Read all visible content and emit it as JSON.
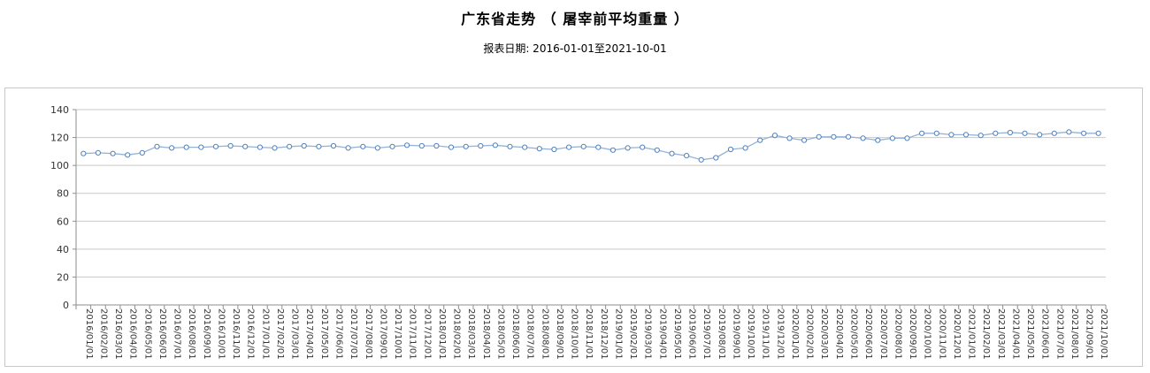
{
  "header": {
    "title": "广东省走势 （ 屠宰前平均重量 ）",
    "report_date": "报表日期: 2016-01-01至2021-10-01"
  },
  "chart_data": {
    "type": "line",
    "title": "广东省走势 （ 屠宰前平均重量 ）",
    "subtitle": "报表日期: 2016-01-01至2021-10-01",
    "xlabel": "",
    "ylabel": "",
    "ylim": [
      0,
      140
    ],
    "ytick_interval": 20,
    "yticks": [
      0,
      20,
      40,
      60,
      80,
      100,
      120,
      140
    ],
    "grid": true,
    "legend_position": "none",
    "x_label_rotation": 90,
    "categories": [
      "2016/01/01",
      "2016/02/01",
      "2016/03/01",
      "2016/04/01",
      "2016/05/01",
      "2016/06/01",
      "2016/07/01",
      "2016/08/01",
      "2016/09/01",
      "2016/10/01",
      "2016/11/01",
      "2016/12/01",
      "2017/01/01",
      "2017/02/01",
      "2017/03/01",
      "2017/04/01",
      "2017/05/01",
      "2017/06/01",
      "2017/07/01",
      "2017/08/01",
      "2017/09/01",
      "2017/10/01",
      "2017/11/01",
      "2017/12/01",
      "2018/01/01",
      "2018/02/01",
      "2018/03/01",
      "2018/04/01",
      "2018/05/01",
      "2018/06/01",
      "2018/07/01",
      "2018/08/01",
      "2018/09/01",
      "2018/10/01",
      "2018/11/01",
      "2018/12/01",
      "2019/01/01",
      "2019/02/01",
      "2019/03/01",
      "2019/04/01",
      "2019/05/01",
      "2019/06/01",
      "2019/07/01",
      "2019/08/01",
      "2019/09/01",
      "2019/10/01",
      "2019/11/01",
      "2019/12/01",
      "2020/01/01",
      "2020/02/01",
      "2020/03/01",
      "2020/04/01",
      "2020/05/01",
      "2020/06/01",
      "2020/07/01",
      "2020/08/01",
      "2020/09/01",
      "2020/10/01",
      "2020/11/01",
      "2020/12/01",
      "2021/01/01",
      "2021/02/01",
      "2021/03/01",
      "2021/04/01",
      "2021/05/01",
      "2021/06/01",
      "2021/07/01",
      "2021/08/01",
      "2021/09/01",
      "2021/10/01"
    ],
    "series": [
      {
        "name": "屠宰前平均重量",
        "values": [
          108.5,
          109,
          108.5,
          107.5,
          109,
          113.5,
          112.5,
          113,
          113,
          113.5,
          114,
          113.5,
          113,
          112.5,
          113.5,
          114,
          113.5,
          114,
          112.5,
          113.5,
          112.5,
          113.5,
          114.5,
          114,
          114,
          113,
          113.5,
          114,
          114.5,
          113.5,
          113,
          112,
          111.5,
          113,
          113.5,
          113,
          111,
          112.5,
          113,
          111,
          108.5,
          107,
          104,
          105.5,
          111.5,
          112.5,
          118,
          121.5,
          119.5,
          118,
          120.5,
          120.5,
          120.5,
          119.5,
          118,
          119.5,
          119.5,
          123,
          123,
          122,
          122,
          121.5,
          123,
          123.5,
          123,
          122,
          123,
          124,
          123,
          123
        ]
      }
    ],
    "colors": {
      "line": "#95b3d7",
      "marker_stroke": "#4f81bd",
      "marker_fill": "#ffffff",
      "gridline": "#c9c9c9",
      "axis": "#8e8e8e",
      "tick_label": "#333333",
      "box_border": "#c8c8c8"
    }
  }
}
